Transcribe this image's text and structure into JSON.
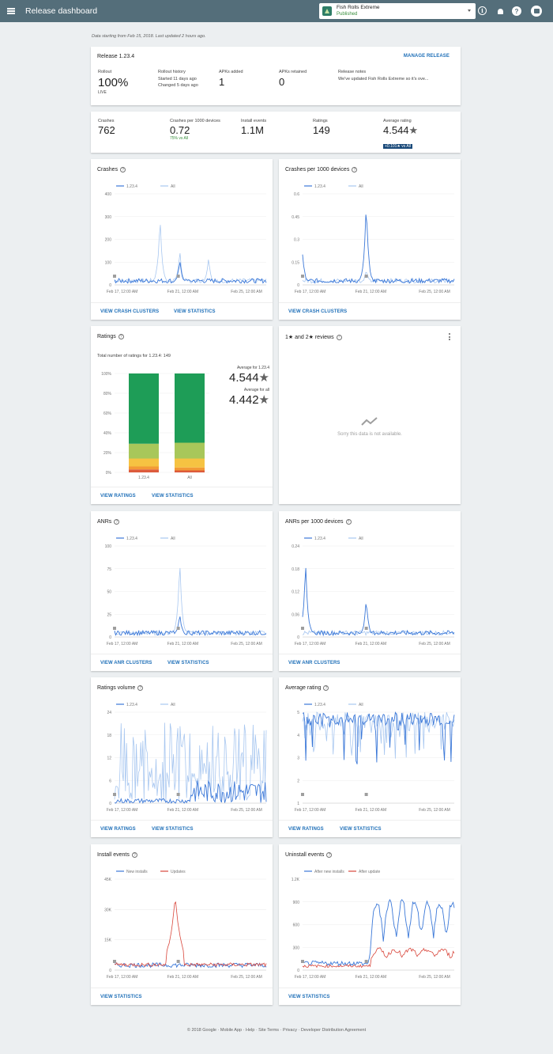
{
  "header": {
    "title": "Release dashboard",
    "app_name": "Fish Rolls Extreme",
    "app_status": "Published"
  },
  "subtitle": "Data starting from Feb 15, 2018. Last updated 2 hours ago.",
  "release": {
    "title": "Release 1.23.4",
    "manage_label": "MANAGE RELEASE",
    "rollout_label": "Rollout",
    "rollout_value": "100%",
    "rollout_status": "LIVE",
    "history_label": "Rollout history",
    "history_line1": "Started 11 days ago",
    "history_line2": "Changed 5 days ago",
    "apks_added_label": "APKs added",
    "apks_added_value": "1",
    "apks_retained_label": "APKs retained",
    "apks_retained_value": "0",
    "notes_label": "Release notes",
    "notes_value": "We've updated Fish Rolls Extreme so it's ove..."
  },
  "stats": {
    "crashes_label": "Crashes",
    "crashes_value": "762",
    "crashes_per_label": "Crashes per 1000 devices",
    "crashes_per_value": "0.72",
    "crashes_per_delta": "75% vs All",
    "installs_label": "Install events",
    "installs_value": "1.1M",
    "ratings_label": "Ratings",
    "ratings_value": "149",
    "avg_label": "Average rating",
    "avg_value": "4.544",
    "avg_delta": "+0.101★ vs All"
  },
  "legend": {
    "release": "1.23.4",
    "all": "All",
    "new_installs": "New installs",
    "updates": "Updates",
    "after_new_installs": "After new installs",
    "after_update": "After update"
  },
  "x_ticks": [
    "Feb 17, 12:00 AM",
    "Feb 21, 12:00 AM",
    "Feb 25, 12:00 AM"
  ],
  "cards": {
    "crashes": {
      "title": "Crashes",
      "link1": "VIEW CRASH CLUSTERS",
      "link2": "VIEW STATISTICS"
    },
    "crashes_per": {
      "title": "Crashes per 1000 devices",
      "link1": "VIEW CRASH CLUSTERS"
    },
    "ratings": {
      "title": "Ratings",
      "total": "Total number of ratings for 1.23.4: 149",
      "avg_release_label": "Average for 1.23.4",
      "avg_release_value": "4.544",
      "avg_all_label": "Average for all",
      "avg_all_value": "4.442",
      "link1": "VIEW RATINGS",
      "link2": "VIEW STATISTICS"
    },
    "reviews": {
      "title": "1★ and 2★ reviews",
      "empty": "Sorry this data is not available."
    },
    "anrs": {
      "title": "ANRs",
      "link1": "VIEW ANR CLUSTERS",
      "link2": "VIEW STATISTICS"
    },
    "anrs_per": {
      "title": "ANRs per 1000 devices",
      "link1": "VIEW ANR CLUSTERS"
    },
    "ratings_volume": {
      "title": "Ratings volume",
      "link1": "VIEW RATINGS",
      "link2": "VIEW STATISTICS"
    },
    "average_rating": {
      "title": "Average rating",
      "link1": "VIEW RATINGS",
      "link2": "VIEW STATISTICS"
    },
    "install_events": {
      "title": "Install events",
      "link1": "VIEW STATISTICS"
    },
    "uninstall_events": {
      "title": "Uninstall events",
      "link1": "VIEW STATISTICS"
    }
  },
  "colors": {
    "blue": "#3b78d8",
    "light_blue": "#a8c7f0",
    "red": "#d9473c",
    "green": "#1e9d57"
  },
  "footer": "© 2018 Google · Mobile App · Help · Site Terms · Privacy · Developer Distribution Agreement",
  "chart_data": [
    {
      "type": "line",
      "title": "Crashes",
      "yticks": [
        "0",
        "100",
        "200",
        "300",
        "400"
      ],
      "ylim": [
        0,
        400
      ],
      "series": [
        {
          "name": "1.23.4",
          "peaks": [
            [
              0.43,
              110
            ]
          ]
        },
        {
          "name": "All",
          "peaks": [
            [
              0.3,
              300
            ],
            [
              0.43,
              150
            ],
            [
              0.62,
              120
            ]
          ]
        }
      ]
    },
    {
      "type": "line",
      "title": "Crashes per 1000 devices",
      "yticks": [
        "0",
        "0.15",
        "0.3",
        "0.45",
        "0.6"
      ],
      "ylim": [
        0,
        0.6
      ],
      "series": [
        {
          "name": "1.23.4",
          "peaks": [
            [
              0.0,
              0.2
            ],
            [
              0.42,
              0.55
            ]
          ]
        },
        {
          "name": "All",
          "peaks": [
            [
              0.42,
              0.1
            ]
          ]
        }
      ]
    },
    {
      "type": "bar",
      "title": "Ratings",
      "categories": [
        "1.23.4",
        "All"
      ],
      "yticks": [
        "0%",
        "20%",
        "40%",
        "60%",
        "80%",
        "100%"
      ],
      "stacks": [
        {
          "5": 71,
          "4": 15,
          "3": 8,
          "2": 3,
          "1": 3
        },
        {
          "5": 70,
          "4": 16,
          "3": 9,
          "2": 3,
          "1": 2
        }
      ],
      "star_colors": {
        "5": "#1e9d57",
        "4": "#a8c75a",
        "3": "#f6c342",
        "2": "#f39b36",
        "1": "#dd5b3c"
      }
    },
    {
      "type": "line",
      "title": "ANRs",
      "yticks": [
        "0",
        "25",
        "50",
        "75",
        "100"
      ],
      "ylim": [
        0,
        100
      ],
      "series": [
        {
          "name": "1.23.4",
          "peaks": [
            [
              0.43,
              25
            ]
          ]
        },
        {
          "name": "All",
          "peaks": [
            [
              0.43,
              85
            ]
          ]
        }
      ]
    },
    {
      "type": "line",
      "title": "ANRs per 1000 devices",
      "yticks": [
        "0",
        "0.06",
        "0.12",
        "0.18",
        "0.24"
      ],
      "ylim": [
        0,
        0.24
      ],
      "series": [
        {
          "name": "1.23.4",
          "peaks": [
            [
              0.02,
              0.2
            ],
            [
              0.42,
              0.1
            ]
          ]
        },
        {
          "name": "All",
          "peaks": []
        }
      ]
    },
    {
      "type": "line",
      "title": "Ratings volume",
      "yticks": [
        "0",
        "6",
        "12",
        "18",
        "24"
      ],
      "ylim": [
        0,
        24
      ],
      "series": [
        {
          "name": "1.23.4",
          "peaks": []
        },
        {
          "name": "All",
          "peaks": []
        }
      ]
    },
    {
      "type": "line",
      "title": "Average rating",
      "yticks": [
        "1",
        "2",
        "3",
        "4",
        "5"
      ],
      "ylim": [
        1,
        5
      ],
      "series": [
        {
          "name": "1.23.4",
          "peaks": []
        },
        {
          "name": "All",
          "peaks": []
        }
      ]
    },
    {
      "type": "line",
      "title": "Install events",
      "yticks": [
        "0",
        "15K",
        "30K",
        "45K"
      ],
      "ylim": [
        0,
        45000
      ],
      "series": [
        {
          "name": "New installs",
          "peaks": []
        },
        {
          "name": "Updates",
          "peaks": [
            [
              0.4,
              36000
            ]
          ]
        }
      ]
    },
    {
      "type": "line",
      "title": "Uninstall events",
      "yticks": [
        "0",
        "300",
        "600",
        "900",
        "1.2K"
      ],
      "ylim": [
        0,
        1200
      ],
      "series": [
        {
          "name": "After new installs",
          "peaks": [
            [
              0.45,
              300
            ]
          ]
        },
        {
          "name": "After update",
          "peaks": []
        }
      ]
    }
  ]
}
